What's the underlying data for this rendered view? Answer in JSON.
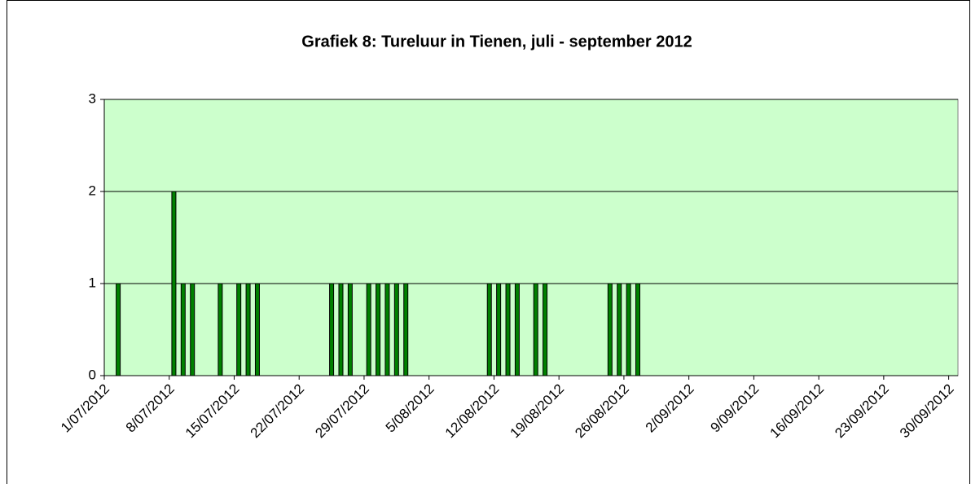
{
  "chart_data": {
    "type": "bar",
    "title": "Grafiek 8: Tureluur in Tienen, juli - september 2012",
    "categories": [
      "1/07/2012",
      null,
      null,
      null,
      null,
      null,
      null,
      "8/07/2012",
      null,
      null,
      null,
      null,
      null,
      null,
      "15/07/2012",
      null,
      null,
      null,
      null,
      null,
      null,
      "22/07/2012",
      null,
      null,
      null,
      null,
      null,
      null,
      "29/07/2012",
      null,
      null,
      null,
      null,
      null,
      null,
      "5/08/2012",
      null,
      null,
      null,
      null,
      null,
      null,
      "12/08/2012",
      null,
      null,
      null,
      null,
      null,
      null,
      "19/08/2012",
      null,
      null,
      null,
      null,
      null,
      null,
      "26/08/2012",
      null,
      null,
      null,
      null,
      null,
      null,
      "2/09/2012",
      null,
      null,
      null,
      null,
      null,
      null,
      "9/09/2012",
      null,
      null,
      null,
      null,
      null,
      null,
      "16/09/2012",
      null,
      null,
      null,
      null,
      null,
      null,
      "23/09/2012",
      null,
      null,
      null,
      null,
      null,
      null,
      "30/09/2012"
    ],
    "values": [
      0,
      1,
      0,
      0,
      0,
      0,
      0,
      2,
      1,
      1,
      0,
      0,
      1,
      0,
      1,
      1,
      1,
      0,
      0,
      0,
      0,
      0,
      0,
      0,
      1,
      1,
      1,
      0,
      1,
      1,
      1,
      1,
      1,
      0,
      0,
      0,
      0,
      0,
      0,
      0,
      0,
      1,
      1,
      1,
      1,
      0,
      1,
      1,
      0,
      0,
      0,
      0,
      0,
      0,
      1,
      1,
      1,
      1,
      0,
      0,
      0,
      0,
      0,
      0,
      0,
      0,
      0,
      0,
      0,
      0,
      0,
      0,
      0,
      0,
      0,
      0,
      0,
      0,
      0,
      0,
      0,
      0,
      0,
      0,
      0,
      0,
      0,
      0,
      0,
      0,
      0,
      0
    ],
    "color": "#008000",
    "plot_background": "#ccffcc",
    "ylim": [
      0,
      3
    ],
    "yticks": [
      0,
      1,
      2,
      3
    ],
    "grid": true
  }
}
